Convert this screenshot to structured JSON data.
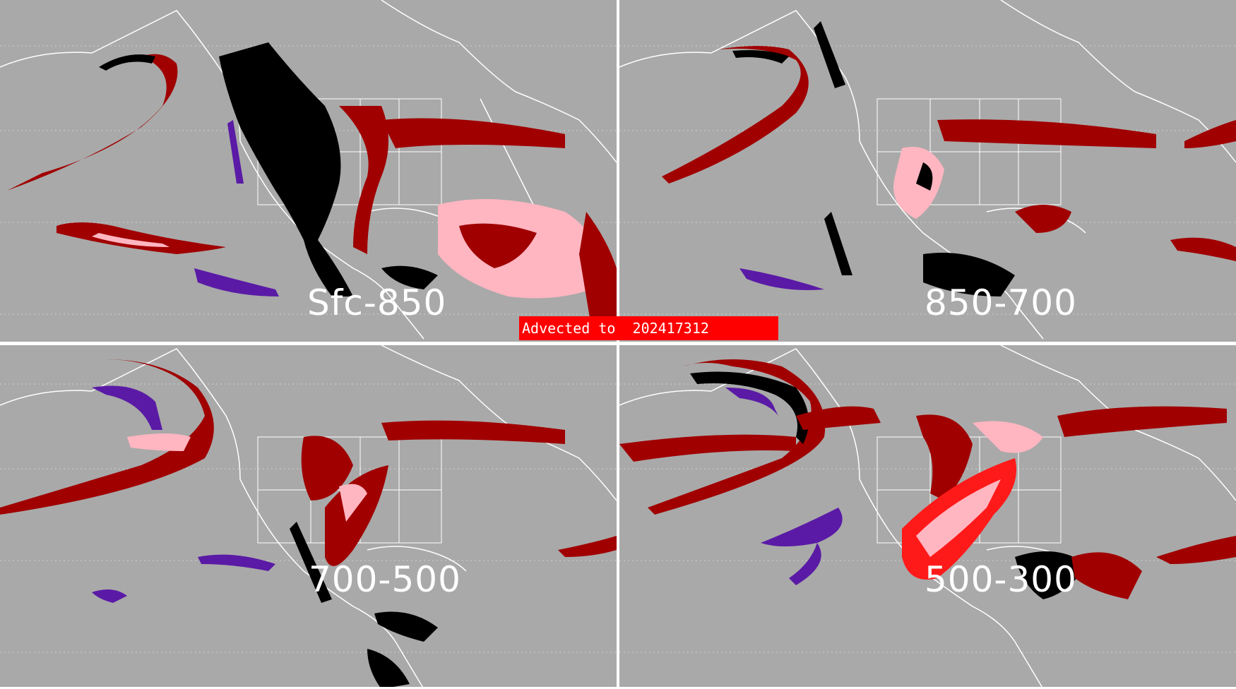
{
  "panels": [
    {
      "id": "p1",
      "layer_label": "Sfc-850"
    },
    {
      "id": "p2",
      "layer_label": "850-700"
    },
    {
      "id": "p3",
      "layer_label": "700-500"
    },
    {
      "id": "p4",
      "layer_label": "500-300"
    }
  ],
  "banner": {
    "text": "Advected to  202417312"
  },
  "colors": {
    "background": "#a9a9a9",
    "coastline": "#ffffff",
    "dark_red": "#a00000",
    "pink": "#ffb6c1",
    "red": "#ff1a1a",
    "black": "#000000",
    "purple": "#5a1aa6",
    "banner": "#ff0000"
  }
}
